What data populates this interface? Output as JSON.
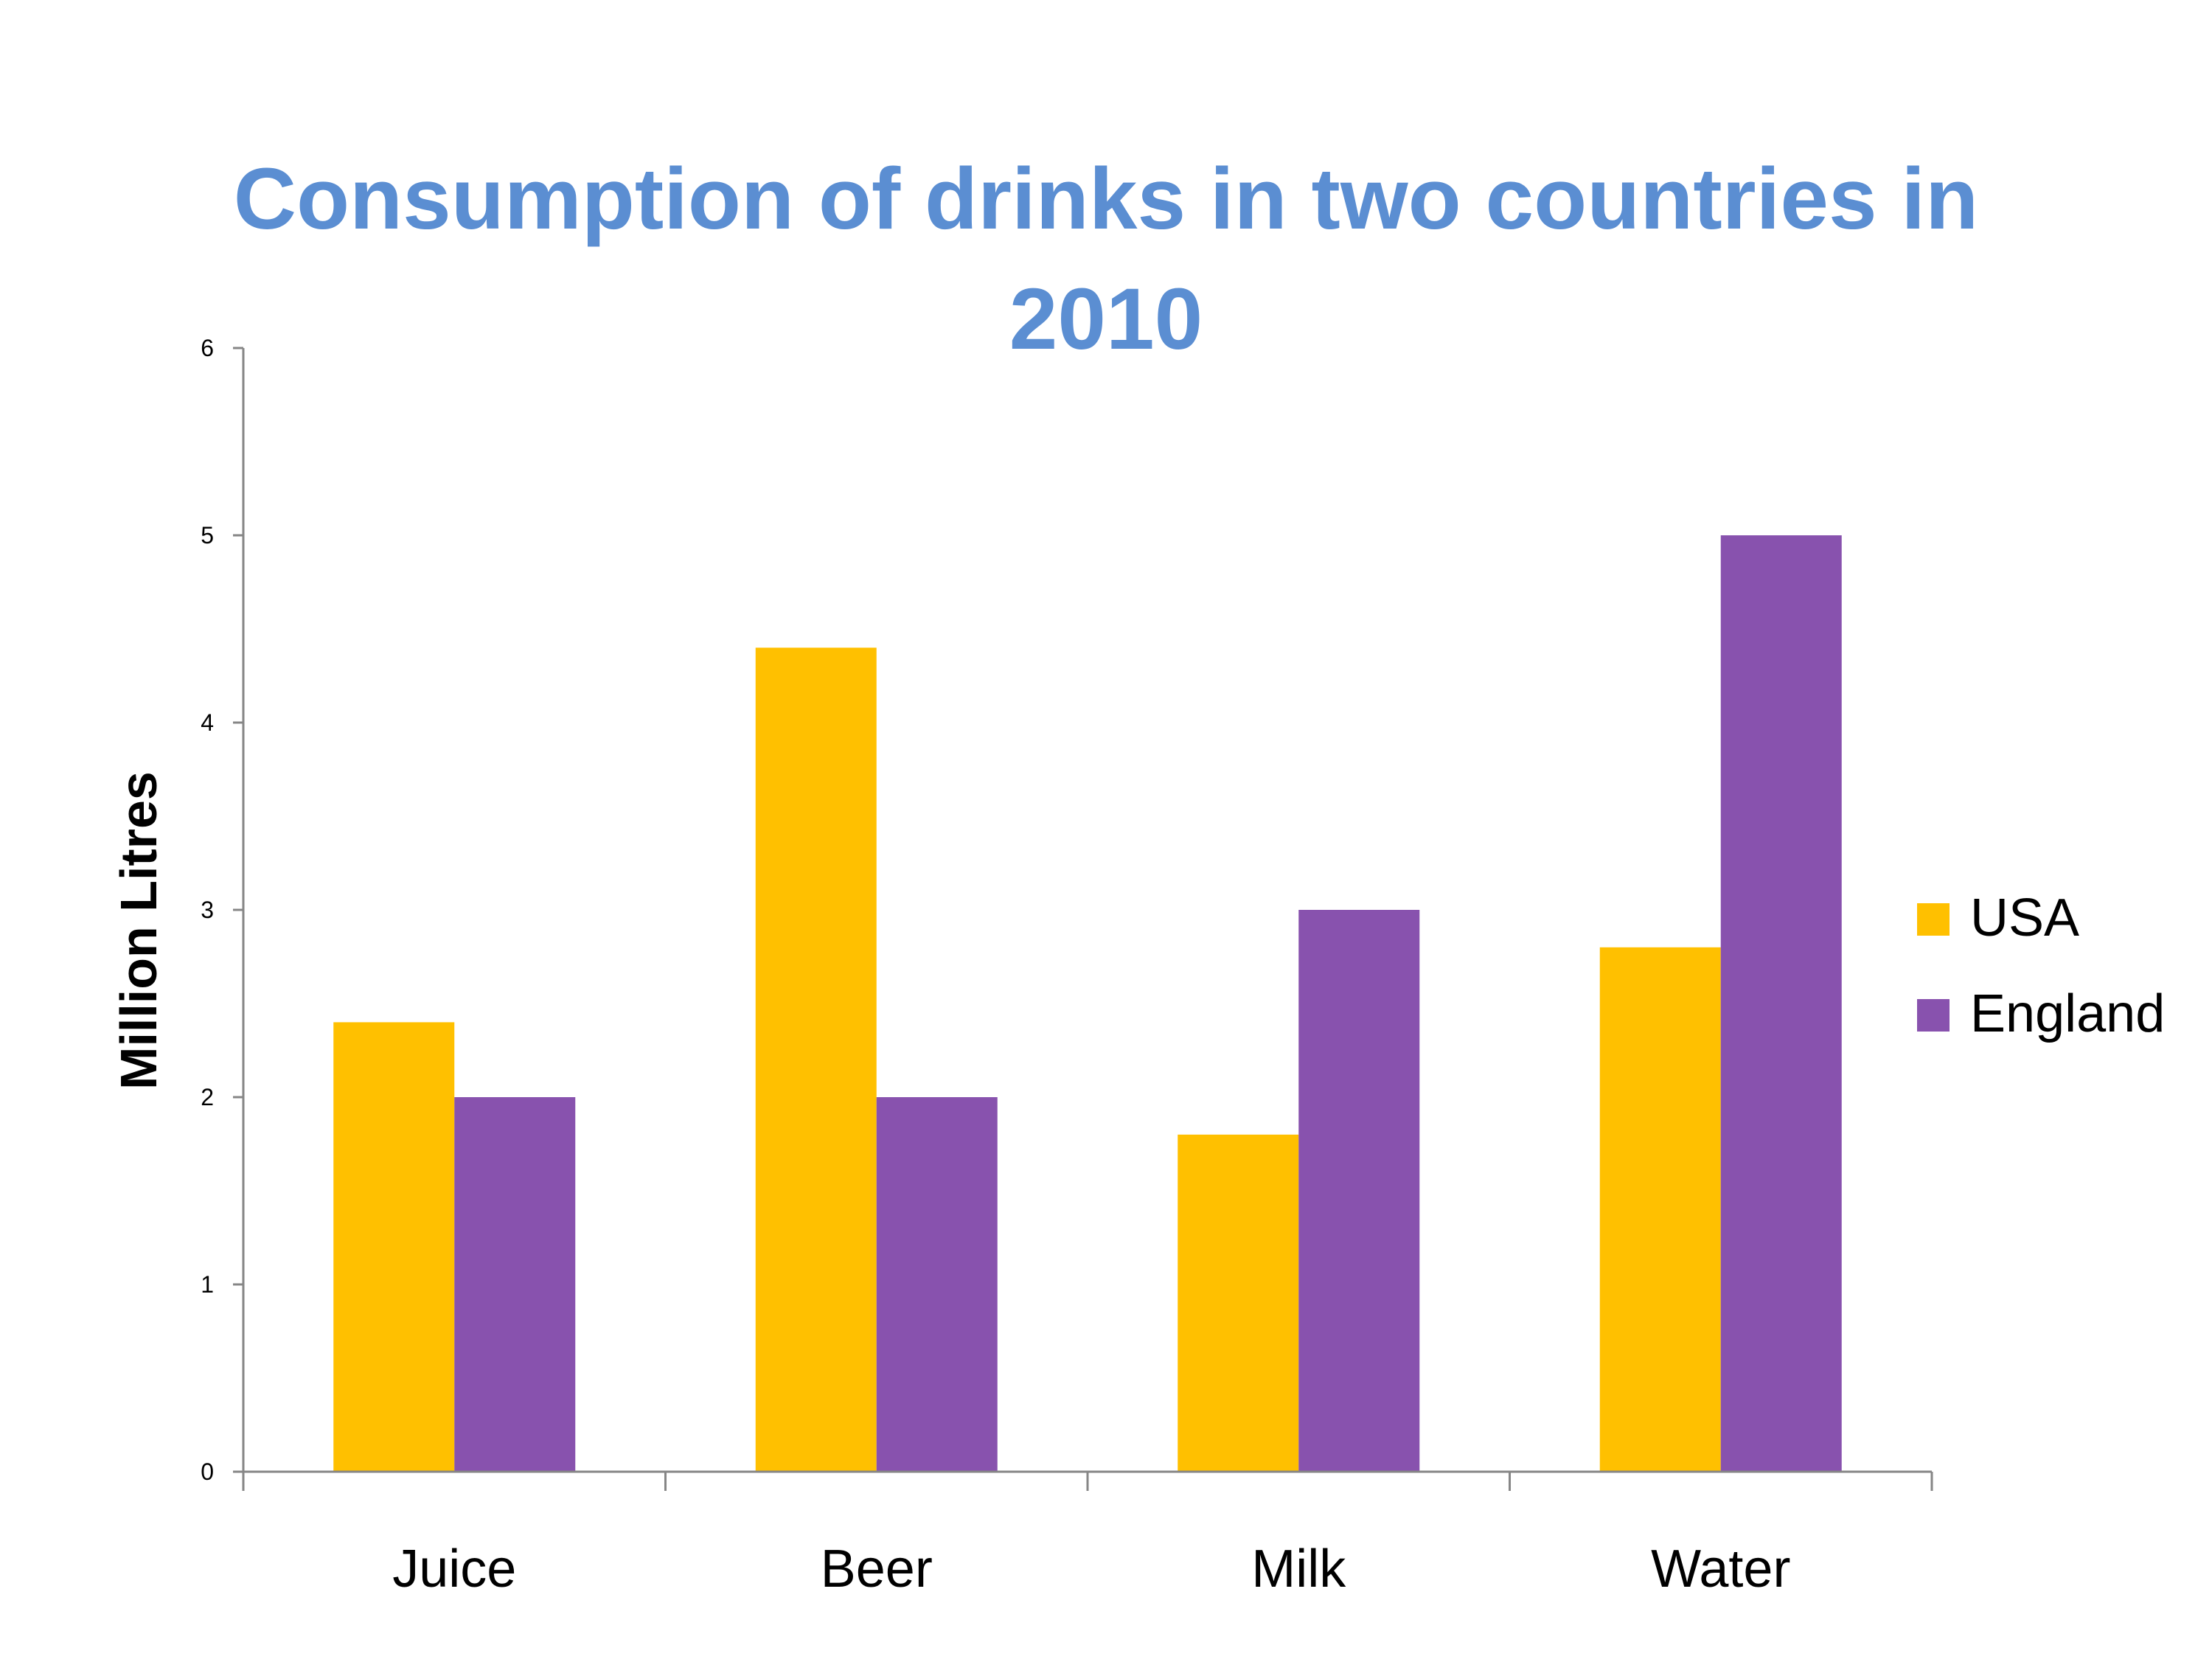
{
  "chart_data": {
    "type": "bar",
    "title_lines": [
      "Consumption of drinks in two countries in",
      "2010"
    ],
    "title_color": "#5B8ED2",
    "xlabel": "",
    "ylabel": "Million Litres",
    "ylim": [
      0,
      6
    ],
    "yticks": [
      "0",
      "1",
      "2",
      "3",
      "4",
      "5",
      "6"
    ],
    "categories": [
      "Juice",
      "Beer",
      "Milk",
      "Water"
    ],
    "series": [
      {
        "name": "USA",
        "color": "#FFC000",
        "values": [
          2.4,
          4.4,
          1.8,
          2.8
        ]
      },
      {
        "name": "England",
        "color": "#8852AE",
        "values": [
          2,
          2,
          3,
          5
        ]
      }
    ],
    "grid": false,
    "legend_position": "right"
  }
}
